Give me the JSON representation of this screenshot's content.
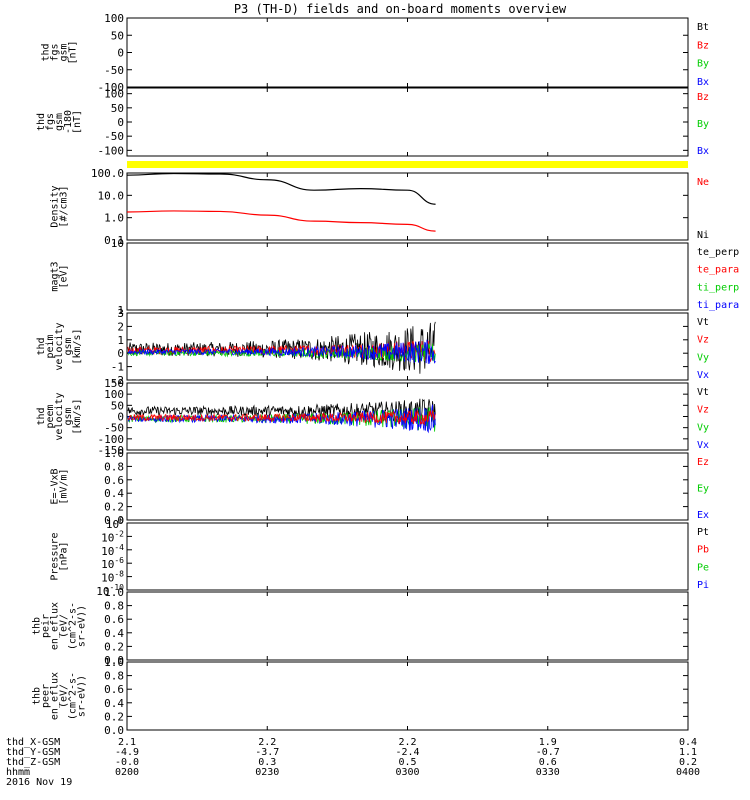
{
  "title": "P3 (TH-D) fields and on-board moments overview",
  "panels": [
    {
      "id": "fgs-gsm",
      "ylabel": [
        "thd",
        "fgs",
        "gsm",
        "[nT]"
      ],
      "ylim": [
        -100,
        100
      ],
      "yticks": [
        "100",
        "50",
        "0",
        "-50",
        "-100"
      ],
      "legend": [
        {
          "text": "Bt",
          "color": "#000000"
        },
        {
          "text": "Bz",
          "color": "#ff0000"
        },
        {
          "text": "By",
          "color": "#00cc00"
        },
        {
          "text": "Bx",
          "color": "#0000ff"
        }
      ]
    },
    {
      "id": "fgs-gsm-d180",
      "ylabel": [
        "thd",
        "fgs",
        "gsm",
        "-180",
        "[nT]"
      ],
      "ylim": [
        -120,
        120
      ],
      "yticks": [
        "100",
        "50",
        "0",
        "-50",
        "-100"
      ],
      "legend": [
        {
          "text": "Bz",
          "color": "#ff0000"
        },
        {
          "text": "By",
          "color": "#00cc00"
        },
        {
          "text": "Bx",
          "color": "#0000ff"
        }
      ]
    },
    {
      "id": "density",
      "ylabel": [
        "Density",
        "[#/cm3]"
      ],
      "log": true,
      "ylim": [
        0.1,
        100
      ],
      "yticks": [
        "100.0",
        "10.0",
        "1.0",
        "0.1"
      ],
      "legend": [
        {
          "text": "Ne",
          "color": "#ff0000"
        },
        {
          "text": "Ni",
          "color": "#000000"
        }
      ]
    },
    {
      "id": "temperature",
      "ylabel": [
        "magt3",
        "[eV]"
      ],
      "log": true,
      "ylim": [
        1,
        10
      ],
      "yticks": [
        "10",
        "1"
      ],
      "legend": [
        {
          "text": "te_perp",
          "color": "#000000"
        },
        {
          "text": "te_para",
          "color": "#ff0000"
        },
        {
          "text": "ti_perp",
          "color": "#00cc00"
        },
        {
          "text": "ti_para",
          "color": "#0000ff"
        }
      ]
    },
    {
      "id": "peim-velocity",
      "ylabel": [
        "thd",
        "peim",
        "velocity",
        "gsm",
        "[km/s]"
      ],
      "ylim": [
        -2,
        3
      ],
      "yticks": [
        "3",
        "2",
        "1",
        "0",
        "-1",
        "-2"
      ],
      "legend": [
        {
          "text": "Vt",
          "color": "#000000"
        },
        {
          "text": "Vz",
          "color": "#ff0000"
        },
        {
          "text": "Vy",
          "color": "#00cc00"
        },
        {
          "text": "Vx",
          "color": "#0000ff"
        }
      ]
    },
    {
      "id": "peem-velocity",
      "ylabel": [
        "thd",
        "peem",
        "velocity",
        "gsm",
        "[km/s]"
      ],
      "ylim": [
        -150,
        150
      ],
      "yticks": [
        "150",
        "100",
        "50",
        "0",
        "-50",
        "-100",
        "-150"
      ],
      "legend": [
        {
          "text": "Vt",
          "color": "#000000"
        },
        {
          "text": "Vz",
          "color": "#ff0000"
        },
        {
          "text": "Vy",
          "color": "#00cc00"
        },
        {
          "text": "Vx",
          "color": "#0000ff"
        }
      ]
    },
    {
      "id": "efield",
      "ylabel": [
        "E=-VxB",
        "[mV/m]"
      ],
      "ylim": [
        0,
        1
      ],
      "yticks": [
        "1.0",
        "0.8",
        "0.6",
        "0.4",
        "0.2",
        "0.0"
      ],
      "legend": [
        {
          "text": "Ez",
          "color": "#ff0000"
        },
        {
          "text": "Ey",
          "color": "#00cc00"
        },
        {
          "text": "Ex",
          "color": "#0000ff"
        }
      ]
    },
    {
      "id": "pressure",
      "ylabel": [
        "Pressure",
        "[nPa]"
      ],
      "log": true,
      "ylim": [
        1e-10,
        1
      ],
      "yticks_log": [
        {
          "base": "10",
          "exp": "0"
        },
        {
          "base": "10",
          "exp": "-2"
        },
        {
          "base": "10",
          "exp": "-4"
        },
        {
          "base": "10",
          "exp": "-6"
        },
        {
          "base": "10",
          "exp": "-8"
        },
        {
          "base": "10",
          "exp": "-10"
        }
      ],
      "legend": [
        {
          "text": "Pt",
          "color": "#000000"
        },
        {
          "text": "Pb",
          "color": "#ff0000"
        },
        {
          "text": "Pe",
          "color": "#00cc00"
        },
        {
          "text": "Pi",
          "color": "#0000ff"
        }
      ]
    },
    {
      "id": "thb-peir-eflux",
      "ylabel": [
        "thb",
        "peir",
        "en_eflux",
        "(eV/",
        "(cm^2-s-",
        "sr-eV))"
      ],
      "ylim": [
        0,
        1
      ],
      "yticks": [
        "1.0",
        "0.8",
        "0.6",
        "0.4",
        "0.2",
        "0.0"
      ],
      "legend": []
    },
    {
      "id": "thb-peer-eflux",
      "ylabel": [
        "thb",
        "peer",
        "en_eflux",
        "(eV/",
        "(cm^2-s-",
        "sr-eV))"
      ],
      "ylim": [
        0,
        1
      ],
      "yticks": [
        "1.0",
        "0.8",
        "0.6",
        "0.4",
        "0.2",
        "0.0"
      ],
      "legend": []
    }
  ],
  "xaxis": {
    "rows": [
      {
        "label": "thd_X-GSM",
        "values": [
          "2.1",
          "2.2",
          "2.2",
          "1.9",
          "0.4"
        ]
      },
      {
        "label": "thd_Y-GSM",
        "values": [
          "-4.9",
          "-3.7",
          "-2.4",
          "-0.7",
          "1.1"
        ]
      },
      {
        "label": "thd_Z-GSM",
        "values": [
          "-0.0",
          "0.3",
          "0.5",
          "0.6",
          "0.2"
        ]
      },
      {
        "label": "hhmm",
        "values": [
          "0200",
          "0230",
          "0300",
          "0330",
          "0400"
        ]
      }
    ],
    "date": "2016 Nov 19"
  },
  "flag_bar_color": "#ffff00",
  "chart_data": {
    "type": "line",
    "title": "P3 (TH-D) fields and on-board moments overview",
    "xlabel": "hhmm",
    "x_ticks": [
      "0200",
      "0230",
      "0300",
      "0330",
      "0400"
    ],
    "data_end_time": "0306",
    "series": [
      {
        "panel": "density",
        "name": "Ni",
        "color": "#000000",
        "x": [
          "0200",
          "0210",
          "0220",
          "0230",
          "0240",
          "0250",
          "0300",
          "0306"
        ],
        "values": [
          80,
          95,
          90,
          50,
          17,
          20,
          17,
          4
        ]
      },
      {
        "panel": "density",
        "name": "Ne",
        "color": "#ff0000",
        "x": [
          "0200",
          "0210",
          "0220",
          "0230",
          "0240",
          "0250",
          "0300",
          "0306"
        ],
        "values": [
          1.8,
          2.0,
          1.9,
          1.3,
          0.7,
          0.6,
          0.5,
          0.25
        ]
      }
    ],
    "noisy_series": [
      {
        "panel": "peim-velocity",
        "name": "Vt",
        "color": "#000000",
        "base": 0.3,
        "noise_start": 0.5,
        "noise_end": 2.2
      },
      {
        "panel": "peim-velocity",
        "name": "Vz",
        "color": "#ff0000",
        "base": 0.2,
        "noise_start": 0.3,
        "noise_end": 0.9
      },
      {
        "panel": "peim-velocity",
        "name": "Vy",
        "color": "#00cc00",
        "base": 0.0,
        "noise_start": 0.2,
        "noise_end": 0.8
      },
      {
        "panel": "peim-velocity",
        "name": "Vx",
        "color": "#0000ff",
        "base": 0.1,
        "noise_start": 0.2,
        "noise_end": 1.0
      },
      {
        "panel": "peem-velocity",
        "name": "Vt",
        "color": "#000000",
        "base": 25,
        "noise_start": 20,
        "noise_end": 60
      },
      {
        "panel": "peem-velocity",
        "name": "Vy",
        "color": "#00cc00",
        "base": -10,
        "noise_start": 15,
        "noise_end": 60
      },
      {
        "panel": "peem-velocity",
        "name": "Vx",
        "color": "#0000ff",
        "base": -10,
        "noise_start": 15,
        "noise_end": 65
      },
      {
        "panel": "peem-velocity",
        "name": "Vz",
        "color": "#ff0000",
        "base": -5,
        "noise_start": 15,
        "noise_end": 35
      }
    ]
  }
}
